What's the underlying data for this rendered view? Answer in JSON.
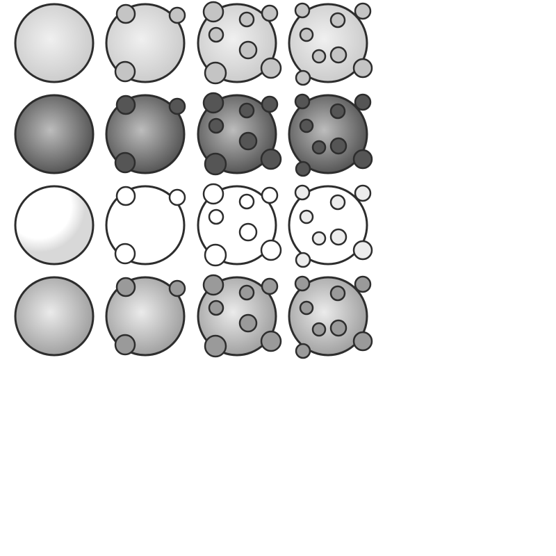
{
  "rows": [
    {
      "shade": "light-gray",
      "sphere_fill": "#c9c9c9",
      "sphere_center": "#f0f0f0",
      "dot_fill": "#c4c4c4"
    },
    {
      "shade": "dark-gray",
      "sphere_fill": "#4e4e4e",
      "sphere_center": "#bdbdbd",
      "dot_fill": "#555555"
    },
    {
      "shade": "white",
      "sphere_fill": "#ffffff",
      "sphere_center": "#ffffff",
      "dot_fill": "#ffffff",
      "sphere_edge": "#d8d8d8",
      "dot_light": "#ececec"
    },
    {
      "shade": "medium-gray",
      "sphere_fill": "#9b9b9b",
      "sphere_center": "#ebebeb",
      "dot_fill": "#9a9a9a"
    }
  ],
  "columns": [
    {
      "variant": "plain"
    },
    {
      "variant": "three-surface-bumps"
    },
    {
      "variant": "surface-bumps-and-inner-spots"
    },
    {
      "variant": "small-bumps-and-inner-spots"
    }
  ],
  "stroke_color": "#2d2d2d",
  "background": "#ffffff"
}
